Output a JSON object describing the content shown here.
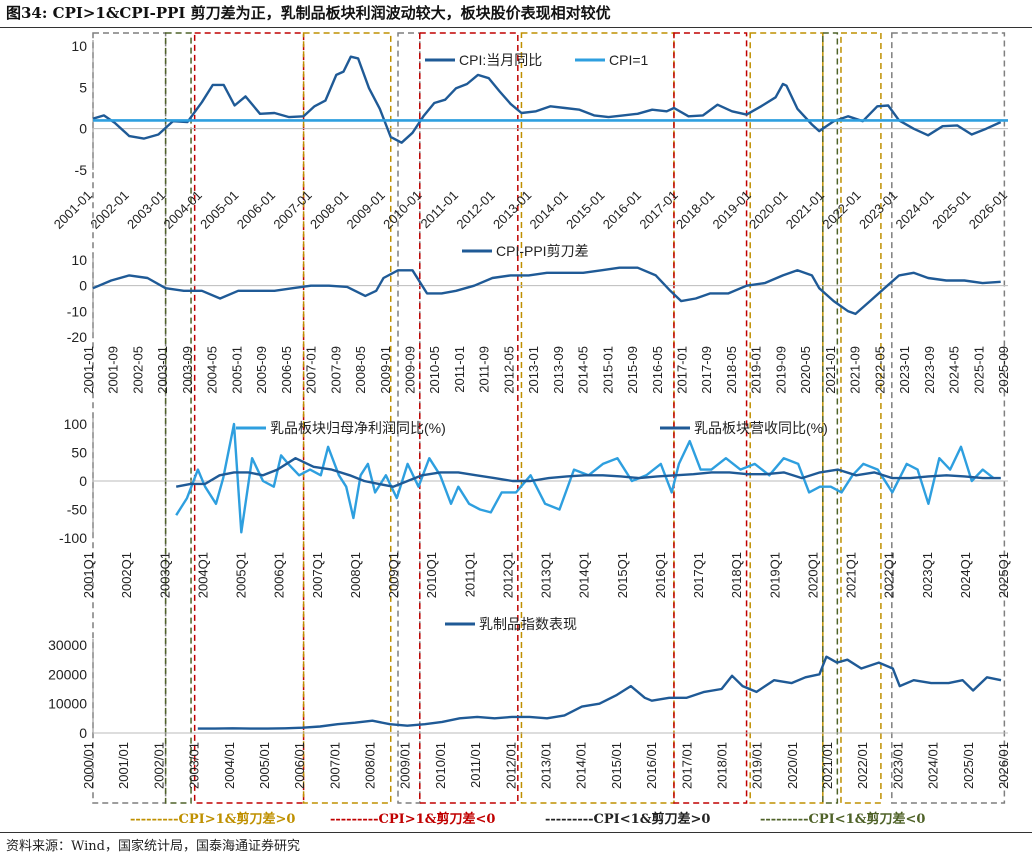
{
  "title": "图34:  CPI>1&CPI-PPI 剪刀差为正，乳制品板块利润波动较大，板块股价表现相对较优",
  "source": "资料来源：Wind，国家统计局，国泰海通证券研究",
  "colors": {
    "dark_blue": "#1F5A96",
    "light_blue": "#2E9FDF",
    "box_gray": "#7F7F7F",
    "box_green": "#4F6228",
    "box_red": "#C00000",
    "box_gold": "#BF9000"
  },
  "regime_legend": [
    {
      "text": "---------CPI>1&剪刀差>0",
      "color": "#BF9000"
    },
    {
      "text": "---------CPI>1&剪刀差<0",
      "color": "#C00000"
    },
    {
      "text": "---------CPI<1&剪刀差>0",
      "color": "#222222"
    },
    {
      "text": "---------CPI<1&剪刀差<0",
      "color": "#4F6228"
    }
  ],
  "chart_data": [
    {
      "type": "line",
      "ylim": [
        -5,
        10
      ],
      "yticks": [
        "10",
        "5",
        "0",
        "-5"
      ],
      "xlabels": [
        "2001-01",
        "2002-01",
        "2003-01",
        "2004-01",
        "2005-01",
        "2006-01",
        "2007-01",
        "2008-01",
        "2009-01",
        "2010-01",
        "2011-01",
        "2012-01",
        "2013-01",
        "2014-01",
        "2015-01",
        "2016-01",
        "2017-01",
        "2018-01",
        "2019-01",
        "2020-01",
        "2021-01",
        "2022-01",
        "2023-01",
        "2024-01",
        "2025-01",
        "2026-01"
      ],
      "series": [
        {
          "name": "CPI:当月同比",
          "x": [
            2001.0,
            2001.3,
            2001.6,
            2002.0,
            2002.4,
            2002.8,
            2003.2,
            2003.6,
            2004.0,
            2004.3,
            2004.6,
            2004.9,
            2005.2,
            2005.6,
            2006.0,
            2006.4,
            2006.8,
            2007.1,
            2007.4,
            2007.7,
            2007.9,
            2008.1,
            2008.3,
            2008.6,
            2008.9,
            2009.2,
            2009.5,
            2009.8,
            2010.1,
            2010.4,
            2010.7,
            2011.0,
            2011.3,
            2011.6,
            2011.9,
            2012.2,
            2012.5,
            2012.8,
            2013.2,
            2013.6,
            2014.0,
            2014.4,
            2014.8,
            2015.2,
            2015.6,
            2016.0,
            2016.4,
            2016.8,
            2017.0,
            2017.4,
            2017.8,
            2018.2,
            2018.6,
            2019.0,
            2019.4,
            2019.8,
            2020.0,
            2020.1,
            2020.4,
            2020.8,
            2021.0,
            2021.4,
            2021.8,
            2022.2,
            2022.6,
            2022.9,
            2023.2,
            2023.6,
            2024.0,
            2024.4,
            2024.8,
            2025.2,
            2025.6,
            2026.0
          ],
          "values": [
            1.2,
            1.6,
            0.7,
            -0.9,
            -1.2,
            -0.7,
            0.9,
            0.8,
            3.2,
            5.3,
            5.3,
            2.8,
            3.9,
            1.8,
            1.9,
            1.4,
            1.5,
            2.7,
            3.4,
            6.5,
            6.9,
            8.7,
            8.5,
            4.9,
            2.4,
            -1.0,
            -1.7,
            -0.5,
            1.5,
            3.1,
            3.5,
            4.9,
            5.4,
            6.5,
            6.1,
            4.5,
            3.0,
            1.9,
            2.1,
            2.7,
            2.5,
            2.3,
            1.6,
            1.4,
            1.6,
            1.8,
            2.3,
            2.1,
            2.5,
            1.5,
            1.6,
            2.9,
            2.1,
            1.7,
            2.7,
            3.8,
            5.4,
            5.2,
            2.4,
            0.5,
            -0.3,
            0.9,
            1.5,
            0.9,
            2.7,
            2.8,
            1.0,
            0.0,
            -0.8,
            0.3,
            0.4,
            -0.7,
            0.0,
            0.8
          ]
        },
        {
          "name": "CPI=1",
          "x": [
            2001.0,
            2026.2
          ],
          "values": [
            1,
            1
          ]
        }
      ]
    },
    {
      "type": "line",
      "ylim": [
        -20,
        10
      ],
      "yticks": [
        "10",
        "0",
        "-10",
        "-20"
      ],
      "xlabels": [
        "2001-01",
        "2001-09",
        "2002-05",
        "2003-01",
        "2003-09",
        "2004-05",
        "2005-01",
        "2005-09",
        "2006-05",
        "2007-01",
        "2007-09",
        "2008-05",
        "2009-01",
        "2009-09",
        "2010-05",
        "2011-01",
        "2011-09",
        "2012-05",
        "2013-01",
        "2013-09",
        "2014-05",
        "2015-01",
        "2015-09",
        "2016-05",
        "2017-01",
        "2017-09",
        "2018-05",
        "2019-01",
        "2019-09",
        "2020-05",
        "2021-01",
        "2021-09",
        "2022-05",
        "2023-01",
        "2023-09",
        "2024-05",
        "2025-01",
        "2025-09"
      ],
      "series": [
        {
          "name": "CPI-PPI剪刀差",
          "x": [
            2001.0,
            2001.5,
            2002.0,
            2002.5,
            2003.0,
            2003.5,
            2004.0,
            2004.5,
            2005.0,
            2005.5,
            2006.0,
            2006.5,
            2007.0,
            2007.5,
            2008.0,
            2008.5,
            2008.8,
            2009.0,
            2009.4,
            2009.8,
            2010.2,
            2010.6,
            2011.0,
            2011.5,
            2012.0,
            2012.5,
            2013.0,
            2013.5,
            2014.0,
            2014.5,
            2015.0,
            2015.5,
            2016.0,
            2016.5,
            2016.9,
            2017.2,
            2017.6,
            2018.0,
            2018.5,
            2019.0,
            2019.5,
            2020.0,
            2020.4,
            2020.8,
            2021.0,
            2021.4,
            2021.8,
            2022.0,
            2022.4,
            2022.8,
            2023.2,
            2023.6,
            2024.0,
            2024.5,
            2025.0,
            2025.5,
            2026.0
          ],
          "values": [
            -1.0,
            2.0,
            4.0,
            3.0,
            -1.0,
            -2.0,
            -2.0,
            -5.0,
            -2.0,
            -2.0,
            -2.0,
            -1.0,
            0.0,
            0.0,
            -0.5,
            -4.0,
            -2.0,
            3.0,
            6.0,
            6.0,
            -3.0,
            -3.0,
            -2.0,
            0.0,
            3.0,
            4.0,
            4.0,
            5.0,
            5.0,
            5.0,
            6.0,
            7.0,
            7.0,
            4.0,
            -2.0,
            -6.0,
            -5.0,
            -3.0,
            -3.0,
            0.0,
            1.0,
            4.0,
            6.0,
            4.0,
            -1.0,
            -6.0,
            -10.0,
            -11.0,
            -6.0,
            -1.0,
            4.0,
            5.0,
            3.0,
            2.0,
            2.0,
            1.0,
            1.5
          ]
        }
      ]
    },
    {
      "type": "line",
      "ylim": [
        -100,
        100
      ],
      "yticks": [
        "100",
        "50",
        "0",
        "-50",
        "-100"
      ],
      "xlabels": [
        "2001Q1",
        "2002Q1",
        "2003Q1",
        "2004Q1",
        "2005Q1",
        "2006Q1",
        "2007Q1",
        "2008Q1",
        "2009Q1",
        "2010Q1",
        "2011Q1",
        "2012Q1",
        "2013Q1",
        "2014Q1",
        "2015Q1",
        "2016Q1",
        "2017Q1",
        "2018Q1",
        "2019Q1",
        "2020Q1",
        "2021Q1",
        "2022Q1",
        "2023Q1",
        "2024Q1",
        "2025Q1"
      ],
      "series": [
        {
          "name": "乳品板块归母净利润同比(%)",
          "x": [
            2003.2,
            2003.5,
            2003.8,
            2004.0,
            2004.3,
            2004.5,
            2004.8,
            2005.0,
            2005.3,
            2005.6,
            2005.9,
            2006.1,
            2006.3,
            2006.6,
            2006.9,
            2007.2,
            2007.4,
            2007.7,
            2007.9,
            2008.1,
            2008.3,
            2008.5,
            2008.7,
            2009.0,
            2009.3,
            2009.6,
            2009.9,
            2010.2,
            2010.5,
            2010.8,
            2011.0,
            2011.3,
            2011.6,
            2011.9,
            2012.2,
            2012.6,
            2013.0,
            2013.4,
            2013.8,
            2014.2,
            2014.6,
            2015.0,
            2015.4,
            2015.8,
            2016.2,
            2016.6,
            2016.9,
            2017.1,
            2017.4,
            2017.7,
            2018.0,
            2018.4,
            2018.8,
            2019.2,
            2019.6,
            2020.0,
            2020.4,
            2020.7,
            2021.0,
            2021.3,
            2021.6,
            2021.9,
            2022.2,
            2022.6,
            2023.0,
            2023.4,
            2023.7,
            2024.0,
            2024.3,
            2024.6,
            2024.9,
            2025.2,
            2025.5,
            2025.8
          ],
          "values": [
            -60,
            -30,
            20,
            -10,
            -40,
            5,
            100,
            -90,
            40,
            0,
            -10,
            45,
            30,
            10,
            20,
            10,
            60,
            10,
            -10,
            -65,
            10,
            30,
            -20,
            10,
            -30,
            30,
            -10,
            40,
            10,
            -40,
            -10,
            -40,
            -50,
            -55,
            -20,
            -20,
            10,
            -40,
            -50,
            20,
            10,
            30,
            40,
            0,
            10,
            30,
            -20,
            30,
            70,
            20,
            20,
            40,
            20,
            30,
            10,
            40,
            30,
            -20,
            -10,
            -10,
            -20,
            10,
            30,
            20,
            -20,
            30,
            20,
            -40,
            40,
            20,
            60,
            0,
            20,
            5
          ]
        },
        {
          "name": "乳品板块营收同比(%)",
          "x": [
            2003.2,
            2003.6,
            2004.0,
            2004.4,
            2004.8,
            2005.2,
            2005.6,
            2006.0,
            2006.5,
            2007.0,
            2007.5,
            2008.0,
            2008.4,
            2008.8,
            2009.2,
            2009.6,
            2010.0,
            2010.5,
            2011.0,
            2011.5,
            2012.0,
            2012.5,
            2013.0,
            2013.5,
            2014.0,
            2014.5,
            2015.0,
            2015.5,
            2016.0,
            2016.5,
            2017.0,
            2017.5,
            2018.0,
            2018.5,
            2019.0,
            2019.5,
            2020.0,
            2020.5,
            2021.0,
            2021.5,
            2022.0,
            2022.5,
            2023.0,
            2023.5,
            2024.0,
            2024.5,
            2025.0,
            2025.5,
            2026.0
          ],
          "values": [
            -10,
            -5,
            -5,
            10,
            15,
            15,
            10,
            20,
            40,
            25,
            20,
            10,
            0,
            -5,
            -10,
            0,
            10,
            15,
            15,
            10,
            5,
            0,
            0,
            5,
            8,
            10,
            10,
            8,
            5,
            8,
            10,
            12,
            15,
            15,
            12,
            12,
            15,
            5,
            15,
            20,
            10,
            15,
            5,
            5,
            8,
            10,
            8,
            5,
            5
          ]
        }
      ]
    },
    {
      "type": "line",
      "ylim": [
        0,
        30000
      ],
      "yticks": [
        "30000",
        "20000",
        "10000",
        "0"
      ],
      "xlabels": [
        "2000/01",
        "2001/01",
        "2002/01",
        "2003/01",
        "2004/01",
        "2005/01",
        "2006/01",
        "2007/01",
        "2008/01",
        "2009/01",
        "2010/01",
        "2011/01",
        "2012/01",
        "2013/01",
        "2014/01",
        "2015/01",
        "2016/01",
        "2017/01",
        "2018/01",
        "2019/01",
        "2020/01",
        "2021/01",
        "2022/01",
        "2023/01",
        "2024/01",
        "2025/01",
        "2026/01"
      ],
      "series": [
        {
          "name": "乳制品指数表现",
          "x": [
            2003.0,
            2003.5,
            2004.0,
            2004.5,
            2005.0,
            2005.5,
            2006.0,
            2006.5,
            2007.0,
            2007.5,
            2008.0,
            2008.5,
            2009.0,
            2009.5,
            2010.0,
            2010.5,
            2011.0,
            2011.5,
            2012.0,
            2012.5,
            2013.0,
            2013.5,
            2014.0,
            2014.5,
            2015.0,
            2015.4,
            2015.8,
            2016.0,
            2016.5,
            2017.0,
            2017.5,
            2018.0,
            2018.3,
            2018.6,
            2019.0,
            2019.5,
            2020.0,
            2020.4,
            2020.8,
            2021.0,
            2021.3,
            2021.6,
            2022.0,
            2022.5,
            2022.9,
            2023.1,
            2023.5,
            2024.0,
            2024.5,
            2024.9,
            2025.2,
            2025.6,
            2026.0
          ],
          "values": [
            1500,
            1500,
            1600,
            1500,
            1500,
            1600,
            1800,
            2200,
            3000,
            3500,
            4200,
            3000,
            2500,
            3000,
            3800,
            5000,
            5500,
            5000,
            5500,
            5500,
            5000,
            6000,
            9000,
            10000,
            13000,
            16000,
            12000,
            11000,
            12000,
            12000,
            14000,
            15000,
            19500,
            16000,
            14000,
            18000,
            17000,
            19000,
            20000,
            26000,
            24000,
            25000,
            22000,
            24000,
            22000,
            16000,
            18000,
            17000,
            17000,
            18000,
            14500,
            19000,
            18000
          ]
        }
      ]
    }
  ]
}
